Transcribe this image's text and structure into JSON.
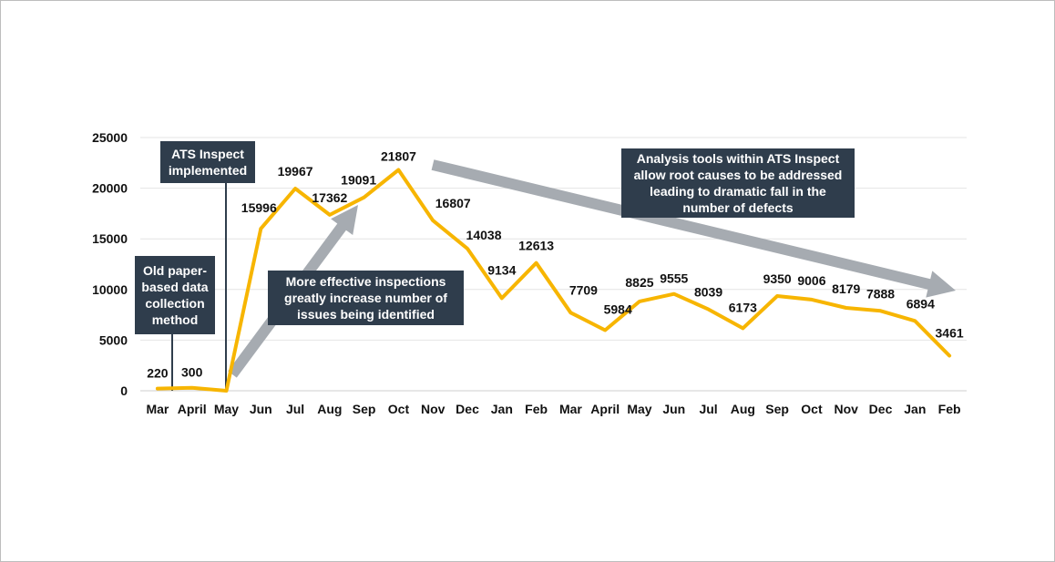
{
  "chart_data": {
    "type": "line",
    "categories": [
      "Mar",
      "April",
      "May",
      "Jun",
      "Jul",
      "Aug",
      "Sep",
      "Oct",
      "Nov",
      "Dec",
      "Jan",
      "Feb",
      "Mar",
      "April",
      "May",
      "Jun",
      "Jul",
      "Aug",
      "Sep",
      "Oct",
      "Nov",
      "Dec",
      "Jan",
      "Feb"
    ],
    "values": [
      220,
      300,
      0,
      15996,
      19967,
      17362,
      19091,
      21807,
      16807,
      14038,
      9134,
      12613,
      7709,
      5984,
      8825,
      9555,
      8039,
      6173,
      9350,
      9006,
      8179,
      7888,
      6894,
      3461
    ],
    "data_labels": [
      "220",
      "300",
      "",
      "15996",
      "19967",
      "17362",
      "19091",
      "21807",
      "16807",
      "14038",
      "9134",
      "12613",
      "7709",
      "5984",
      "8825",
      "9555",
      "8039",
      "6173",
      "9350",
      "9006",
      "8179",
      "7888",
      "6894",
      "3461"
    ],
    "y_ticks": [
      0,
      5000,
      10000,
      15000,
      20000,
      25000
    ],
    "ylim": [
      0,
      25000
    ],
    "grid": true,
    "line_color": "#f7b500",
    "arrow_color": "#a6abb1"
  },
  "annotations": {
    "old_method": "Old paper-based data collection method",
    "ats_implemented": "ATS Inspect implemented",
    "more_effective": "More effective inspections greatly increase number of issues being identified",
    "analysis_tools": "Analysis tools within ATS Inspect allow root causes to be addressed leading to dramatic fall in the number of defects"
  },
  "colors": {
    "callout_bg": "#2f3d4c",
    "callout_text": "#ffffff"
  }
}
